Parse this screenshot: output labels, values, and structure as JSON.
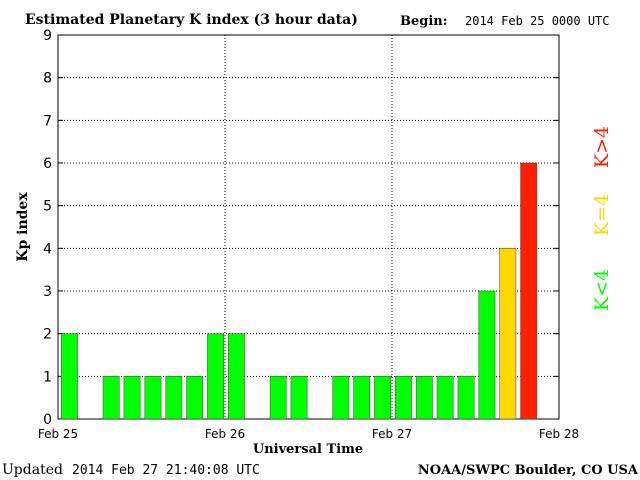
{
  "header": {
    "title": "Estimated Planetary K index (3 hour data)",
    "begin_label": "Begin:",
    "begin_value": "2014 Feb 25 0000 UTC"
  },
  "footer": {
    "updated_label": "Updated",
    "updated_value": "2014 Feb 27 21:40:08 UTC",
    "source": "NOAA/SWPC Boulder, CO USA"
  },
  "legend": {
    "low": "K<4",
    "mid": "K=4",
    "high": "K>4"
  },
  "colors": {
    "low": "#00ff00",
    "mid": "#ffd700",
    "high": "#ff2000"
  },
  "chart_data": {
    "type": "bar",
    "xlabel": "Universal Time",
    "ylabel": "Kp index",
    "ylim": [
      0,
      9
    ],
    "xlim": [
      0,
      72
    ],
    "grid": true,
    "yticks": [
      "0",
      "1",
      "2",
      "3",
      "4",
      "5",
      "6",
      "7",
      "8",
      "9"
    ],
    "xtick_labels": [
      "Feb 25",
      "Feb 26",
      "Feb 27",
      "Feb 28"
    ],
    "x_bin_hours": 3,
    "x": [
      "2014-02-25 00:00",
      "2014-02-25 03:00",
      "2014-02-25 06:00",
      "2014-02-25 09:00",
      "2014-02-25 12:00",
      "2014-02-25 15:00",
      "2014-02-25 18:00",
      "2014-02-25 21:00",
      "2014-02-26 00:00",
      "2014-02-26 03:00",
      "2014-02-26 06:00",
      "2014-02-26 09:00",
      "2014-02-26 12:00",
      "2014-02-26 15:00",
      "2014-02-26 18:00",
      "2014-02-26 21:00",
      "2014-02-27 00:00",
      "2014-02-27 03:00",
      "2014-02-27 06:00",
      "2014-02-27 09:00",
      "2014-02-27 12:00",
      "2014-02-27 15:00",
      "2014-02-27 18:00"
    ],
    "values": [
      2,
      0,
      1,
      1,
      1,
      1,
      1,
      2,
      2,
      0,
      1,
      1,
      0,
      1,
      1,
      1,
      1,
      1,
      1,
      1,
      3,
      4,
      6
    ]
  }
}
